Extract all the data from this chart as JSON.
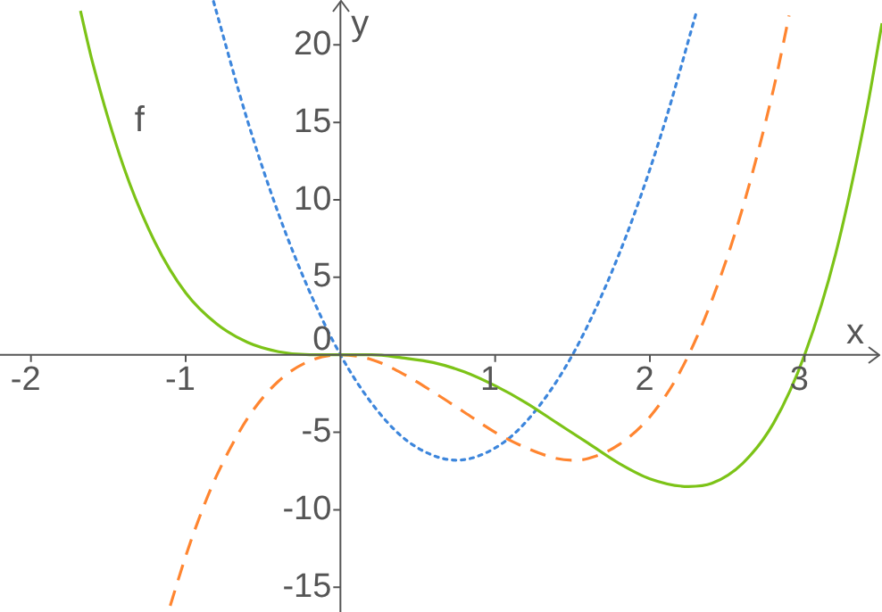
{
  "chart_data": {
    "type": "line",
    "xlabel": "x",
    "ylabel": "y",
    "xlim": [
      -2.2,
      3.5
    ],
    "ylim": [
      -16.6,
      22.9
    ],
    "xticks": [
      -2,
      -1,
      1,
      2,
      3
    ],
    "yticks": [
      -15,
      -10,
      -5,
      0,
      5,
      10,
      15,
      20
    ],
    "grid": false,
    "legend": false,
    "marker": "none",
    "series": [
      {
        "name": "f",
        "color": "#7cc317",
        "line_style": "solid",
        "x": [
          -1.68,
          -1.6,
          -1.4,
          -1.2,
          -1.0,
          -0.8,
          -0.6,
          -0.4,
          -0.2,
          0,
          0.2,
          0.4,
          0.6,
          0.8,
          1.0,
          1.2,
          1.4,
          1.6,
          1.8,
          2.0,
          2.25,
          2.4,
          2.6,
          2.8,
          3.0,
          3.2,
          3.4,
          3.5
        ],
        "values": [
          22.2,
          18.8,
          12.1,
          7.3,
          4,
          2,
          0.8,
          0.2,
          0,
          0,
          0,
          -0.2,
          -0.5,
          -1.1,
          -2,
          -3.1,
          -4.4,
          -5.7,
          -7,
          -8,
          -8.5,
          -8.3,
          -7,
          -4.4,
          0,
          6.5,
          15.7,
          21.4
        ]
      },
      {
        "color": "#ff8530",
        "line_style": "dashed",
        "x": [
          -1.1,
          -1.0,
          -0.9,
          -0.8,
          -0.6,
          -0.4,
          -0.2,
          0,
          0.2,
          0.4,
          0.6,
          0.8,
          1.0,
          1.2,
          1.4,
          1.5,
          1.6,
          1.8,
          2.0,
          2.2,
          2.4,
          2.6,
          2.8,
          2.9
        ],
        "values": [
          -16.2,
          -13,
          -10.2,
          -7.8,
          -4.1,
          -1.7,
          -0.4,
          0,
          -0.3,
          -1.2,
          -2.4,
          -3.7,
          -5,
          -6,
          -6.7,
          -6.8,
          -6.7,
          -5.8,
          -4,
          -1,
          3.5,
          9.5,
          17.2,
          21.9
        ]
      },
      {
        "color": "#3d86dc",
        "line_style": "dotted",
        "x": [
          -0.82,
          -0.6,
          -0.4,
          -0.2,
          0,
          0.2,
          0.4,
          0.6,
          0.75,
          0.9,
          1.1,
          1.3,
          1.5,
          1.7,
          1.9,
          2.1,
          2.3
        ],
        "values": [
          22.8,
          15.1,
          9.1,
          4.1,
          0,
          -3.1,
          -5.3,
          -6.5,
          -6.8,
          -6.5,
          -5.3,
          -3.1,
          0,
          4.1,
          9.1,
          15.1,
          22.1
        ]
      }
    ]
  }
}
